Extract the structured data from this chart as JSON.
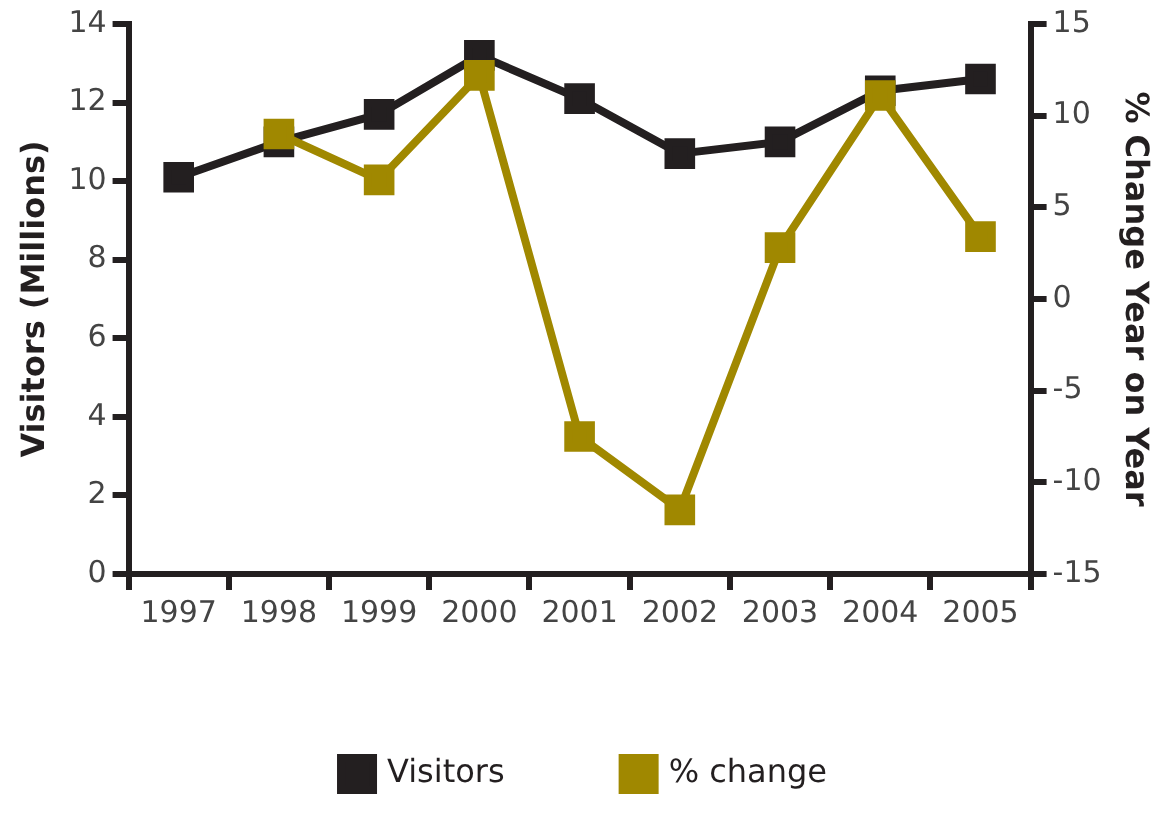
{
  "chart_data": {
    "type": "line",
    "ylabel": "Visitors (Millions)",
    "y2label": "% Change Year on Year",
    "categories": [
      "1997",
      "1998",
      "1999",
      "2000",
      "2001",
      "2002",
      "2003",
      "2004",
      "2005"
    ],
    "series": [
      {
        "name": "Visitors",
        "color": "#231f20",
        "values": [
          10.1,
          11.0,
          11.7,
          13.2,
          12.1,
          10.7,
          11.0,
          12.3,
          12.6
        ]
      },
      {
        "name": "% change",
        "color": "#a08800",
        "axis": "y2",
        "values": [
          null,
          9.0,
          6.5,
          12.2,
          -7.5,
          -11.5,
          2.8,
          11.1,
          3.4
        ]
      }
    ],
    "ylim": [
      0,
      14
    ],
    "yticks": [
      0,
      2,
      4,
      6,
      8,
      10,
      12,
      14
    ],
    "y2lim": [
      -15,
      15
    ],
    "y2ticks": [
      -15,
      -10,
      -5,
      0,
      5,
      10,
      15
    ],
    "grid": false,
    "legend": "bottom",
    "marker": "square",
    "line_style": "solid"
  }
}
